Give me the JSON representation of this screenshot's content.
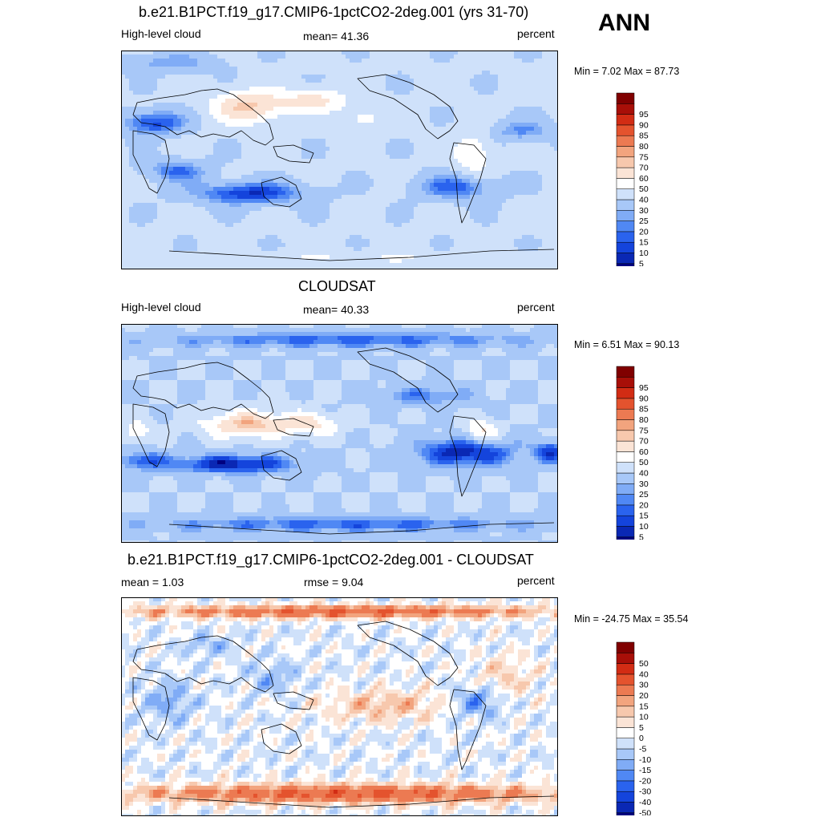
{
  "season": "ANN",
  "palette_abs": [
    "#000080",
    "#0a28b4",
    "#1444dc",
    "#2a63ee",
    "#5088f4",
    "#80acf6",
    "#a8c8f8",
    "#cfe1fa",
    "#ffffff",
    "#fbe4d6",
    "#f7c8ad",
    "#f2a47e",
    "#ec7a52",
    "#e4532e",
    "#d22c14",
    "#a80f08",
    "#800000"
  ],
  "palette_diff": [
    "#000080",
    "#0a28b4",
    "#1444dc",
    "#2a63ee",
    "#5088f4",
    "#80acf6",
    "#a8c8f8",
    "#cfe1fa",
    "#ffffff",
    "#fbe4d6",
    "#f7c8ad",
    "#f2a47e",
    "#ec7a52",
    "#e4532e",
    "#d22c14",
    "#a80f08",
    "#800000"
  ],
  "panels": [
    {
      "id": "model",
      "title": "b.e21.B1PCT.f19_g17.CMIP6-1pctCO2-2deg.001 (yrs 31-70)",
      "left_label": "High-level cloud",
      "center_label": "mean=  41.36",
      "units": "percent",
      "minmax": "Min =   7.02 Max =  87.73",
      "colorbar_levels": [
        "5",
        "10",
        "15",
        "20",
        "25",
        "30",
        "40",
        "50",
        "60",
        "70",
        "75",
        "80",
        "85",
        "90",
        "95"
      ],
      "field": "model"
    },
    {
      "id": "obs",
      "title": "CLOUDSAT",
      "left_label": "High-level cloud",
      "center_label": "mean=  40.33",
      "units": "percent",
      "minmax": "Min =   6.51 Max =  90.13",
      "colorbar_levels": [
        "5",
        "10",
        "15",
        "20",
        "25",
        "30",
        "40",
        "50",
        "60",
        "70",
        "75",
        "80",
        "85",
        "90",
        "95"
      ],
      "field": "obs"
    },
    {
      "id": "diff",
      "title": "b.e21.B1PCT.f19_g17.CMIP6-1pctCO2-2deg.001 - CLOUDSAT",
      "left_label": "mean =   1.03",
      "center_label": "rmse =   9.04",
      "units": "percent",
      "minmax": "Min = -24.75 Max =  35.54",
      "colorbar_levels": [
        "-50",
        "-40",
        "-30",
        "-20",
        "-15",
        "-10",
        "-5",
        "0",
        "5",
        "10",
        "15",
        "20",
        "30",
        "40",
        "50"
      ],
      "field": "diff"
    }
  ]
}
